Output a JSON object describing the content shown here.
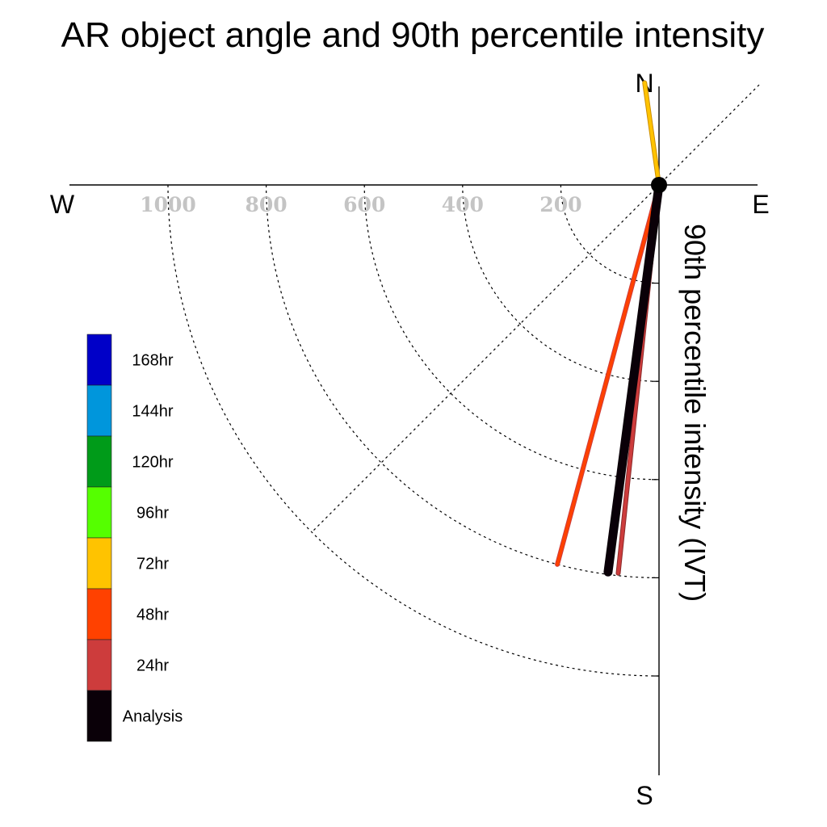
{
  "chart_data": {
    "type": "polar-vector",
    "title": "AR object angle and 90th percentile intensity",
    "ylabel": "90th percentile intensity (IVT)",
    "compass": {
      "north": "N",
      "south": "S",
      "east": "E",
      "west": "W"
    },
    "radial_ticks": [
      "200",
      "400",
      "600",
      "800",
      "1000"
    ],
    "radial_tick_values": [
      200,
      400,
      600,
      800,
      1000
    ],
    "rmax": 1200,
    "legend": [
      "168hr",
      "144hr",
      "120hr",
      "96hr",
      "72hr",
      "48hr",
      "24hr",
      "Analysis"
    ],
    "legend_colors": [
      "#0000c8",
      "#0096dc",
      "#009b19",
      "#55ff00",
      "#ffc300",
      "#ff4100",
      "#cd3c3c",
      "#0a0008"
    ],
    "series": [
      {
        "name": "72hr",
        "angle_deg": 352,
        "intensity": 210,
        "color": "#ffc300",
        "outline": "#cc8e00"
      },
      {
        "name": "48hr",
        "angle_deg": 195,
        "intensity": 800,
        "color": "#ff4100",
        "outline": "#cd3c3c"
      },
      {
        "name": "24hr",
        "angle_deg": 186,
        "intensity": 795,
        "color": "#cd3c3c",
        "outline": "#8a2a2a"
      },
      {
        "name": "Analysis",
        "angle_deg": 187.5,
        "intensity": 795,
        "color": "#0a0008",
        "outline": "#0a0008"
      }
    ]
  }
}
